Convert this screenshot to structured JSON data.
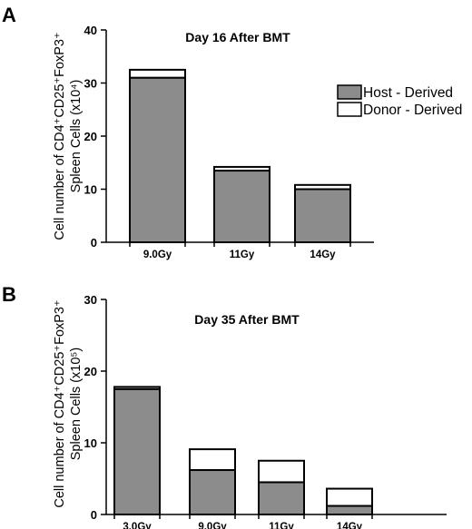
{
  "colors": {
    "host": "#8c8c8c",
    "donor": "#ffffff",
    "stroke": "#000000"
  },
  "legend": {
    "host_label": "Host - Derived",
    "donor_label": "Donor - Derived"
  },
  "chart_data": [
    {
      "panel": "A",
      "type": "bar",
      "stacked": true,
      "title": "Day 16 After BMT",
      "ylabel_line1": "Cell number of CD4⁺CD25⁺FoxP3⁺",
      "ylabel_line2": "Spleen Cells (x10⁴)",
      "ylim": [
        0,
        40
      ],
      "yticks": [
        0,
        10,
        20,
        30,
        40
      ],
      "categories": [
        "9.0Gy",
        "11Gy",
        "14Gy"
      ],
      "series": [
        {
          "name": "Host - Derived",
          "values": [
            31,
            13.5,
            10
          ]
        },
        {
          "name": "Donor - Derived",
          "values": [
            1.5,
            0.7,
            0.8
          ]
        }
      ],
      "legend_position": "right"
    },
    {
      "panel": "B",
      "type": "bar",
      "stacked": true,
      "title": "Day 35 After BMT",
      "ylabel_line1": "Cell number of CD4⁺CD25⁺FoxP3⁺",
      "ylabel_line2": "Spleen Cells (x10⁵)",
      "ylim": [
        0,
        30
      ],
      "yticks": [
        0,
        10,
        20,
        30
      ],
      "categories": [
        "3.0Gy",
        "9.0Gy",
        "11Gy",
        "14Gy"
      ],
      "series": [
        {
          "name": "Host - Derived",
          "values": [
            17.5,
            6.2,
            4.5,
            1.2
          ]
        },
        {
          "name": "Donor - Derived",
          "values": [
            0.3,
            2.9,
            3.0,
            2.4
          ]
        }
      ]
    }
  ]
}
